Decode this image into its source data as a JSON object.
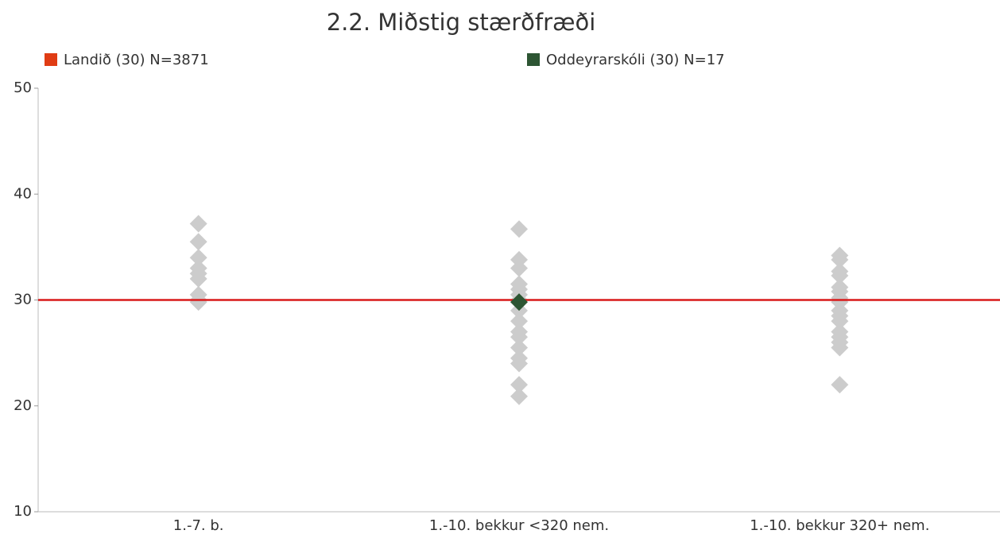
{
  "chart_data": {
    "type": "strip",
    "title": "2.2. Miðstig stærðfræði",
    "categories": [
      "1.-7. b.",
      "1.-10. bekkur <320 nem.",
      "1.-10. bekkur 320+ nem."
    ],
    "ylim": [
      10,
      50
    ],
    "yticks": [
      10,
      20,
      30,
      40,
      50
    ],
    "others": {
      "color": "#cccccc",
      "values": [
        [
          37.2,
          35.5,
          34,
          33,
          32.5,
          32,
          30.5,
          30,
          29.8
        ],
        [
          36.7,
          33.8,
          33,
          31.5,
          31,
          30.5,
          30,
          29,
          28,
          27,
          26.5,
          25.5,
          24.5,
          24,
          22,
          20.9
        ],
        [
          34.2,
          33.8,
          32.7,
          32.3,
          31.2,
          30.8,
          30.2,
          29.8,
          29,
          28.5,
          28,
          27,
          26.5,
          26,
          25.5,
          22
        ]
      ]
    },
    "reference": {
      "name": "Landið (30) N=3871",
      "color": "#e03c14",
      "line_color": "#d91a1a",
      "value": 30
    },
    "school": {
      "name": "Oddeyrarskóli (30) N=17",
      "color": "#2d5533",
      "values": [
        null,
        29.8,
        null
      ]
    }
  }
}
